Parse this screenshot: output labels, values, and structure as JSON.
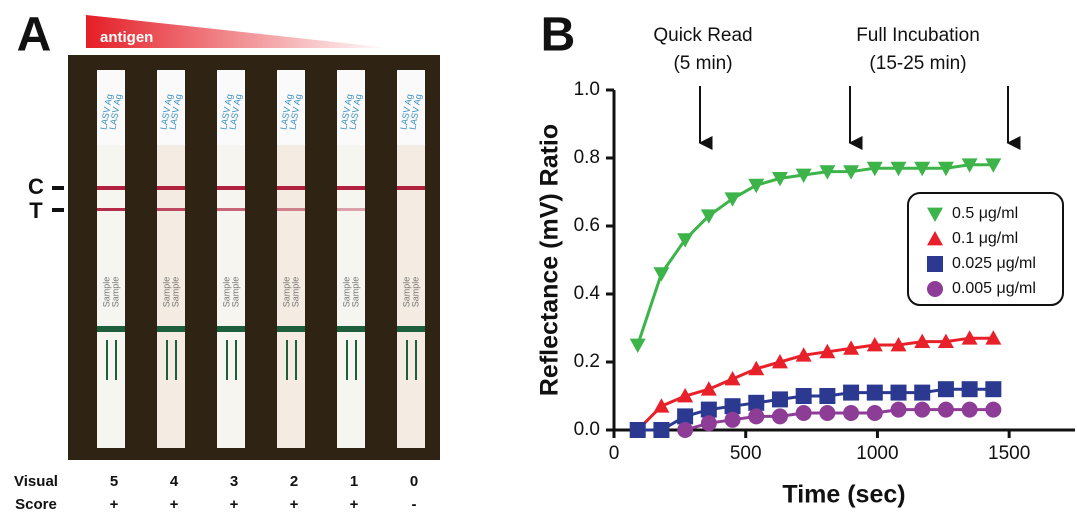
{
  "panel_a": {
    "label": "A",
    "gradient_label": "antigen",
    "control_label": "C",
    "test_label": "T",
    "strip_top_text": "LASV Ag",
    "strip_bottom_text": "Sample",
    "score_heading": [
      "Visual",
      "Score"
    ],
    "scores": [
      5,
      4,
      3,
      2,
      1,
      0
    ],
    "signs": [
      "+",
      "+",
      "+",
      "+",
      "+",
      "-"
    ]
  },
  "chart_data": {
    "type": "scatter",
    "panel_label": "B",
    "annotations": [
      [
        "Quick Read",
        "(5 min)"
      ],
      [
        "Full Incubation",
        "(15-25 min)"
      ]
    ],
    "x_label": "Time (sec)",
    "y_label": "Reflectance (mV) Ratio",
    "xlim": [
      0,
      1750
    ],
    "xticks": [
      0,
      500,
      1000,
      1500
    ],
    "ylim": [
      0,
      1
    ],
    "yticks": [
      {
        "value": 0,
        "label": "0.0"
      },
      0.2,
      0.4,
      0.6,
      0.8,
      {
        "value": 1,
        "label": "1.0"
      }
    ],
    "x": [
      90,
      180,
      270,
      360,
      450,
      540,
      630,
      720,
      810,
      900,
      990,
      1080,
      1170,
      1260,
      1350,
      1440
    ],
    "series": [
      {
        "name": "0.5 μg/ml",
        "color": "#3cb44a",
        "marker": "triangle-down",
        "values": [
          0.25,
          0.46,
          0.56,
          0.63,
          0.68,
          0.72,
          0.74,
          0.75,
          0.76,
          0.76,
          0.77,
          0.77,
          0.77,
          0.77,
          0.78,
          0.78
        ]
      },
      {
        "name": "0.1 μg/ml",
        "color": "#e8202a",
        "marker": "triangle-up",
        "values": [
          0.0,
          0.07,
          0.1,
          0.12,
          0.15,
          0.18,
          0.2,
          0.22,
          0.23,
          0.24,
          0.25,
          0.25,
          0.26,
          0.26,
          0.27,
          0.27
        ]
      },
      {
        "name": "0.025 μg/ml",
        "color": "#2b3990",
        "marker": "square",
        "values": [
          0.0,
          0.0,
          0.04,
          0.06,
          0.07,
          0.08,
          0.09,
          0.1,
          0.1,
          0.11,
          0.11,
          0.11,
          0.11,
          0.12,
          0.12,
          0.12
        ]
      },
      {
        "name": "0.005 μg/ml",
        "color": "#8e3d97",
        "marker": "circle",
        "values": [
          null,
          null,
          0.0,
          0.02,
          0.03,
          0.04,
          0.04,
          0.05,
          0.05,
          0.05,
          0.05,
          0.06,
          0.06,
          0.06,
          0.06,
          0.06
        ]
      }
    ]
  }
}
